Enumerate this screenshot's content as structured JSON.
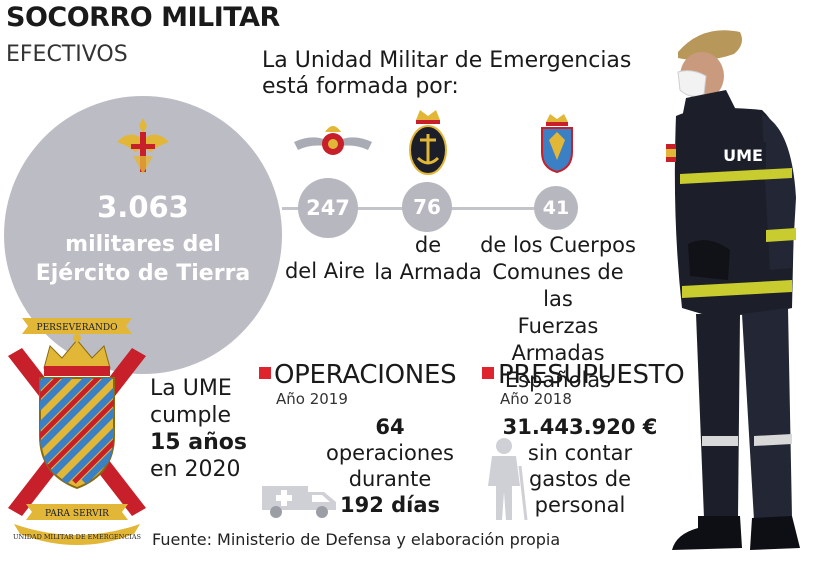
{
  "header": {
    "title": "SOCORRO MILITAR",
    "subtitle": "EFECTIVOS"
  },
  "intro_text": "La Unidad Militar de Emergencias está formada por:",
  "army": {
    "value": "3.063",
    "label_line1": "militares del",
    "label_line2": "Ejército de Tierra"
  },
  "branches": [
    {
      "value": "247",
      "label_lines": [
        "del Aire"
      ]
    },
    {
      "value": "76",
      "label_lines": [
        "de",
        "la Armada"
      ]
    },
    {
      "value": "41",
      "label_lines": [
        "de los Cuerpos",
        "Comunes de las",
        "Fuerzas Armadas",
        "Españolas"
      ]
    }
  ],
  "chart_data": {
    "type": "bubble",
    "title": "EFECTIVOS",
    "categories": [
      "Ejército de Tierra",
      "Ejército del Aire",
      "Armada",
      "Cuerpos Comunes de las Fuerzas Armadas Españolas"
    ],
    "values": [
      3063,
      247,
      76,
      41
    ]
  },
  "ume": {
    "line1": "La UME",
    "line2": "cumple",
    "line3": "15 años",
    "line4": "en 2020"
  },
  "operaciones": {
    "heading": "OPERACIONES",
    "year": "Año 2019",
    "count": "64",
    "line2": "operaciones",
    "line3": "durante",
    "days": "192 días"
  },
  "presupuesto": {
    "heading": "PRESUPUESTO",
    "year": "Año 2018",
    "amount": "31.443.920 €",
    "line2": "sin contar",
    "line3": "gastos de",
    "line4": "personal"
  },
  "coat_of_arms": {
    "motto_top": "PERSEVERANDO",
    "motto_bottom": "PARA SERVIR",
    "unit_name": "UNIDAD MILITAR DE EMERGENCIAS"
  },
  "soldier": {
    "badge": "UME"
  },
  "source": "Fuente: Ministerio de Defensa y elaboración propia",
  "colors": {
    "accent": "#e0242e",
    "circle": "#bcbcc4",
    "gold": "#e2b737",
    "navy": "#1c1f2a"
  }
}
